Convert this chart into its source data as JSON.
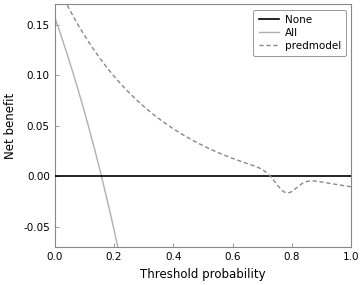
{
  "title": "",
  "xlabel": "Threshold probability",
  "ylabel": "Net benefit",
  "xlim": [
    0,
    1.0
  ],
  "ylim": [
    -0.07,
    0.17
  ],
  "yticks": [
    -0.05,
    0.0,
    0.05,
    0.1,
    0.15
  ],
  "xticks": [
    0.0,
    0.2,
    0.4,
    0.6,
    0.8,
    1.0
  ],
  "none_color": "#000000",
  "all_color": "#b0b0b0",
  "pred_color": "#888888",
  "bg_color": "#ffffff",
  "legend_labels": [
    "None",
    "All",
    "predmodel"
  ],
  "prevalence": 0.158
}
